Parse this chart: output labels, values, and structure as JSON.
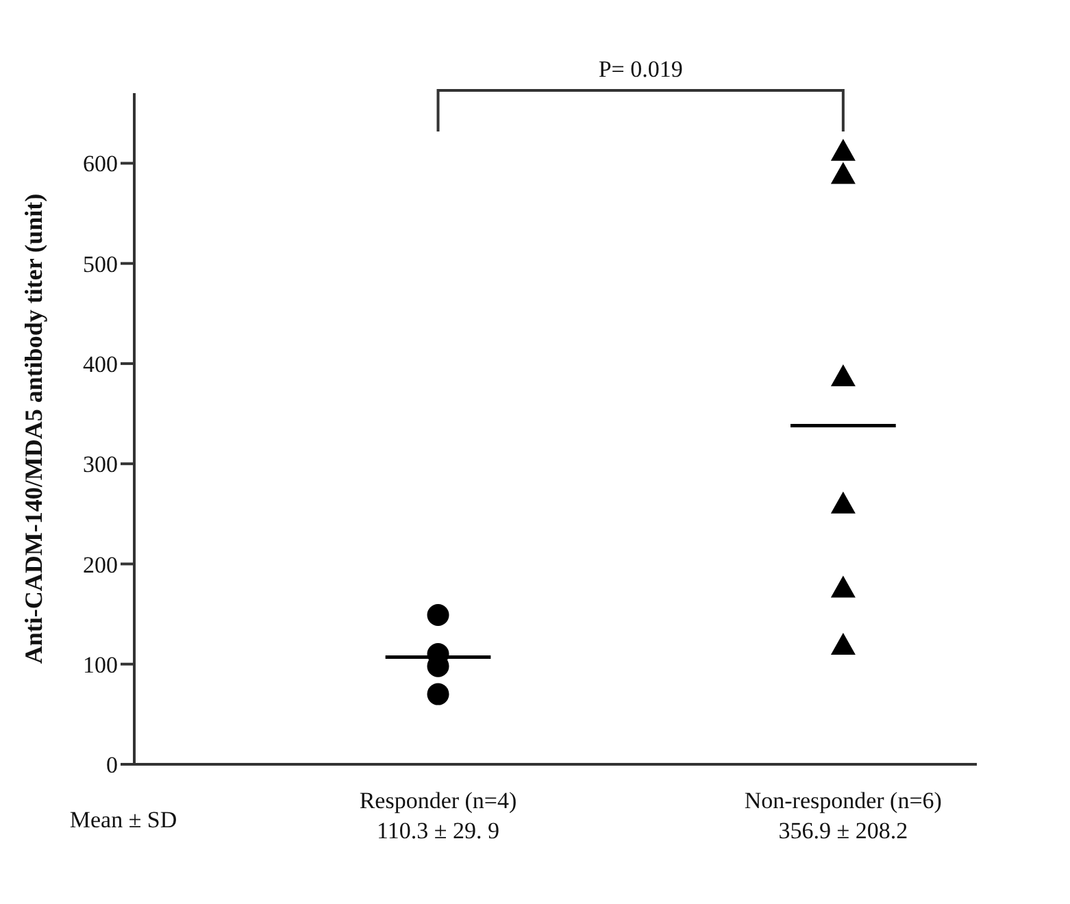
{
  "chart_data": {
    "type": "scatter",
    "ylabel": "Anti-CADM-140/MDA5 antibody titer (unit)",
    "categories": [
      "Responder (n=4)",
      "Non-responder (n=6)"
    ],
    "series": [
      {
        "marker": "circle",
        "color": "#000000",
        "x": [
          "Responder (n=4)",
          "Responder (n=4)",
          "Responder (n=4)",
          "Responder (n=4)"
        ],
        "values": [
          149,
          110,
          98,
          70
        ]
      },
      {
        "marker": "triangle",
        "color": "#000000",
        "x": [
          "Non-responder (n=6)",
          "Non-responder (n=6)",
          "Non-responder (n=6)",
          "Non-responder (n=6)",
          "Non-responder (n=6)",
          "Non-responder (n=6)"
        ],
        "values": [
          612,
          589,
          387,
          260,
          176,
          119
        ]
      }
    ],
    "ref_lines": [
      {
        "axis": "y",
        "value": 107,
        "color": "#000000"
      },
      {
        "axis": "y",
        "value": 338,
        "color": "#000000"
      }
    ],
    "annotations": [
      "P= 0.019",
      "Mean ± SD",
      "110.3 ± 29. 9",
      "356.9 ± 208.2"
    ],
    "ylim": [
      0,
      670
    ],
    "yticks": [
      0,
      100,
      200,
      300,
      400,
      500,
      600
    ],
    "grid": false,
    "legend": false
  }
}
